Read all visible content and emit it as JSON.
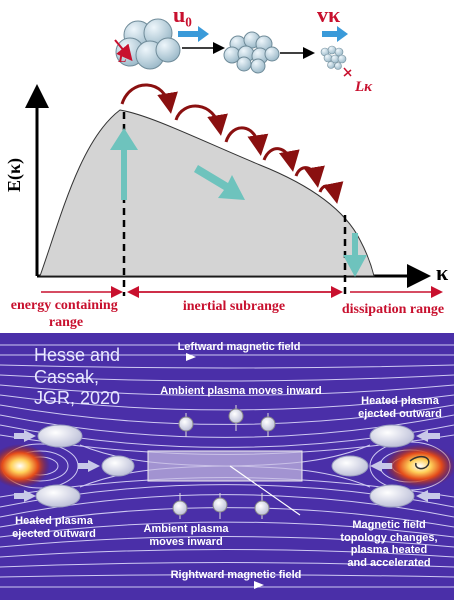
{
  "top_panel": {
    "u_label": "u₀",
    "v_label": "vκ",
    "L_label": "L",
    "Lk_label": "Lκ",
    "y_axis_label": "E(κ)",
    "x_axis_label": "κ",
    "ranges": {
      "energy_containing": "energy containing range",
      "inertial": "inertial subrange",
      "dissipation": "dissipation range"
    }
  },
  "bottom_panel": {
    "citation_line1": "Hesse and",
    "citation_line2": "Cassak,",
    "citation_line3": "JGR, 2020",
    "leftward_field": "Leftward magnetic field",
    "ambient_top": "Ambient plasma moves inward",
    "heated_right_1": "Heated plasma",
    "heated_right_2": "ejected outward",
    "heated_left_1": "Heated plasma",
    "heated_left_2": "ejected outward",
    "ambient_bottom_1": "Ambient plasma",
    "ambient_bottom_2": "moves inward",
    "topology_1": "Magnetic field",
    "topology_2": "topology changes,",
    "topology_3": "plasma heated",
    "topology_4": "and accelerated",
    "rightward_field": "Rightward magnetic field"
  },
  "colors": {
    "red": "#c8102e",
    "teal": "#6ec3bd",
    "blue_arrow": "#3a9ad9",
    "curve_fill": "#d4d4d4",
    "purple_bg": "#4a2fa8"
  }
}
